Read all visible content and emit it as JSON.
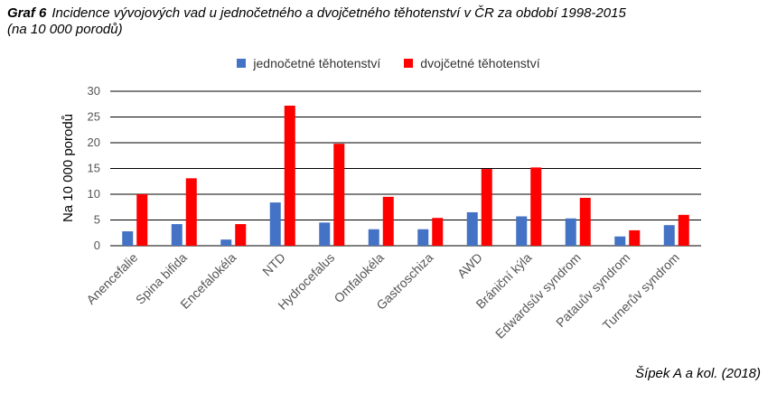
{
  "figure": {
    "label": "Graf 6",
    "title_line1": "Incidence vývojových vad u jednočetného a dvojčetného těhotenství v ČR za období 1998-2015",
    "title_line2": "(na 10 000 porodů)",
    "source": "Šípek A a kol. (2018)"
  },
  "chart_data": {
    "type": "bar",
    "ylabel": "Na 10 000 porodů",
    "xlabel": "",
    "ylim": [
      0,
      30
    ],
    "yticks": [
      0,
      5,
      10,
      15,
      20,
      25,
      30
    ],
    "grid": true,
    "legend_position": "top-center",
    "categories": [
      "Anencefalie",
      "Spina bifida",
      "Encefalokéla",
      "NTD",
      "Hydrocefalus",
      "Omfalokéla",
      "Gastroschiza",
      "AWD",
      "Brániční kýla",
      "Edwardsův syndrom",
      "Patauův syndrom",
      "Turnerův syndrom"
    ],
    "series": [
      {
        "name": "jednočetné těhotenství",
        "color": "#4472C4",
        "values": [
          2.8,
          4.2,
          1.2,
          8.4,
          4.5,
          3.2,
          3.2,
          6.5,
          5.7,
          5.3,
          1.8,
          4.0
        ]
      },
      {
        "name": "dvojčetné těhotenství",
        "color": "#FF0000",
        "values": [
          10.0,
          13.1,
          4.2,
          27.2,
          19.8,
          9.5,
          5.4,
          14.9,
          15.2,
          9.3,
          3.0,
          6.0
        ]
      }
    ]
  }
}
